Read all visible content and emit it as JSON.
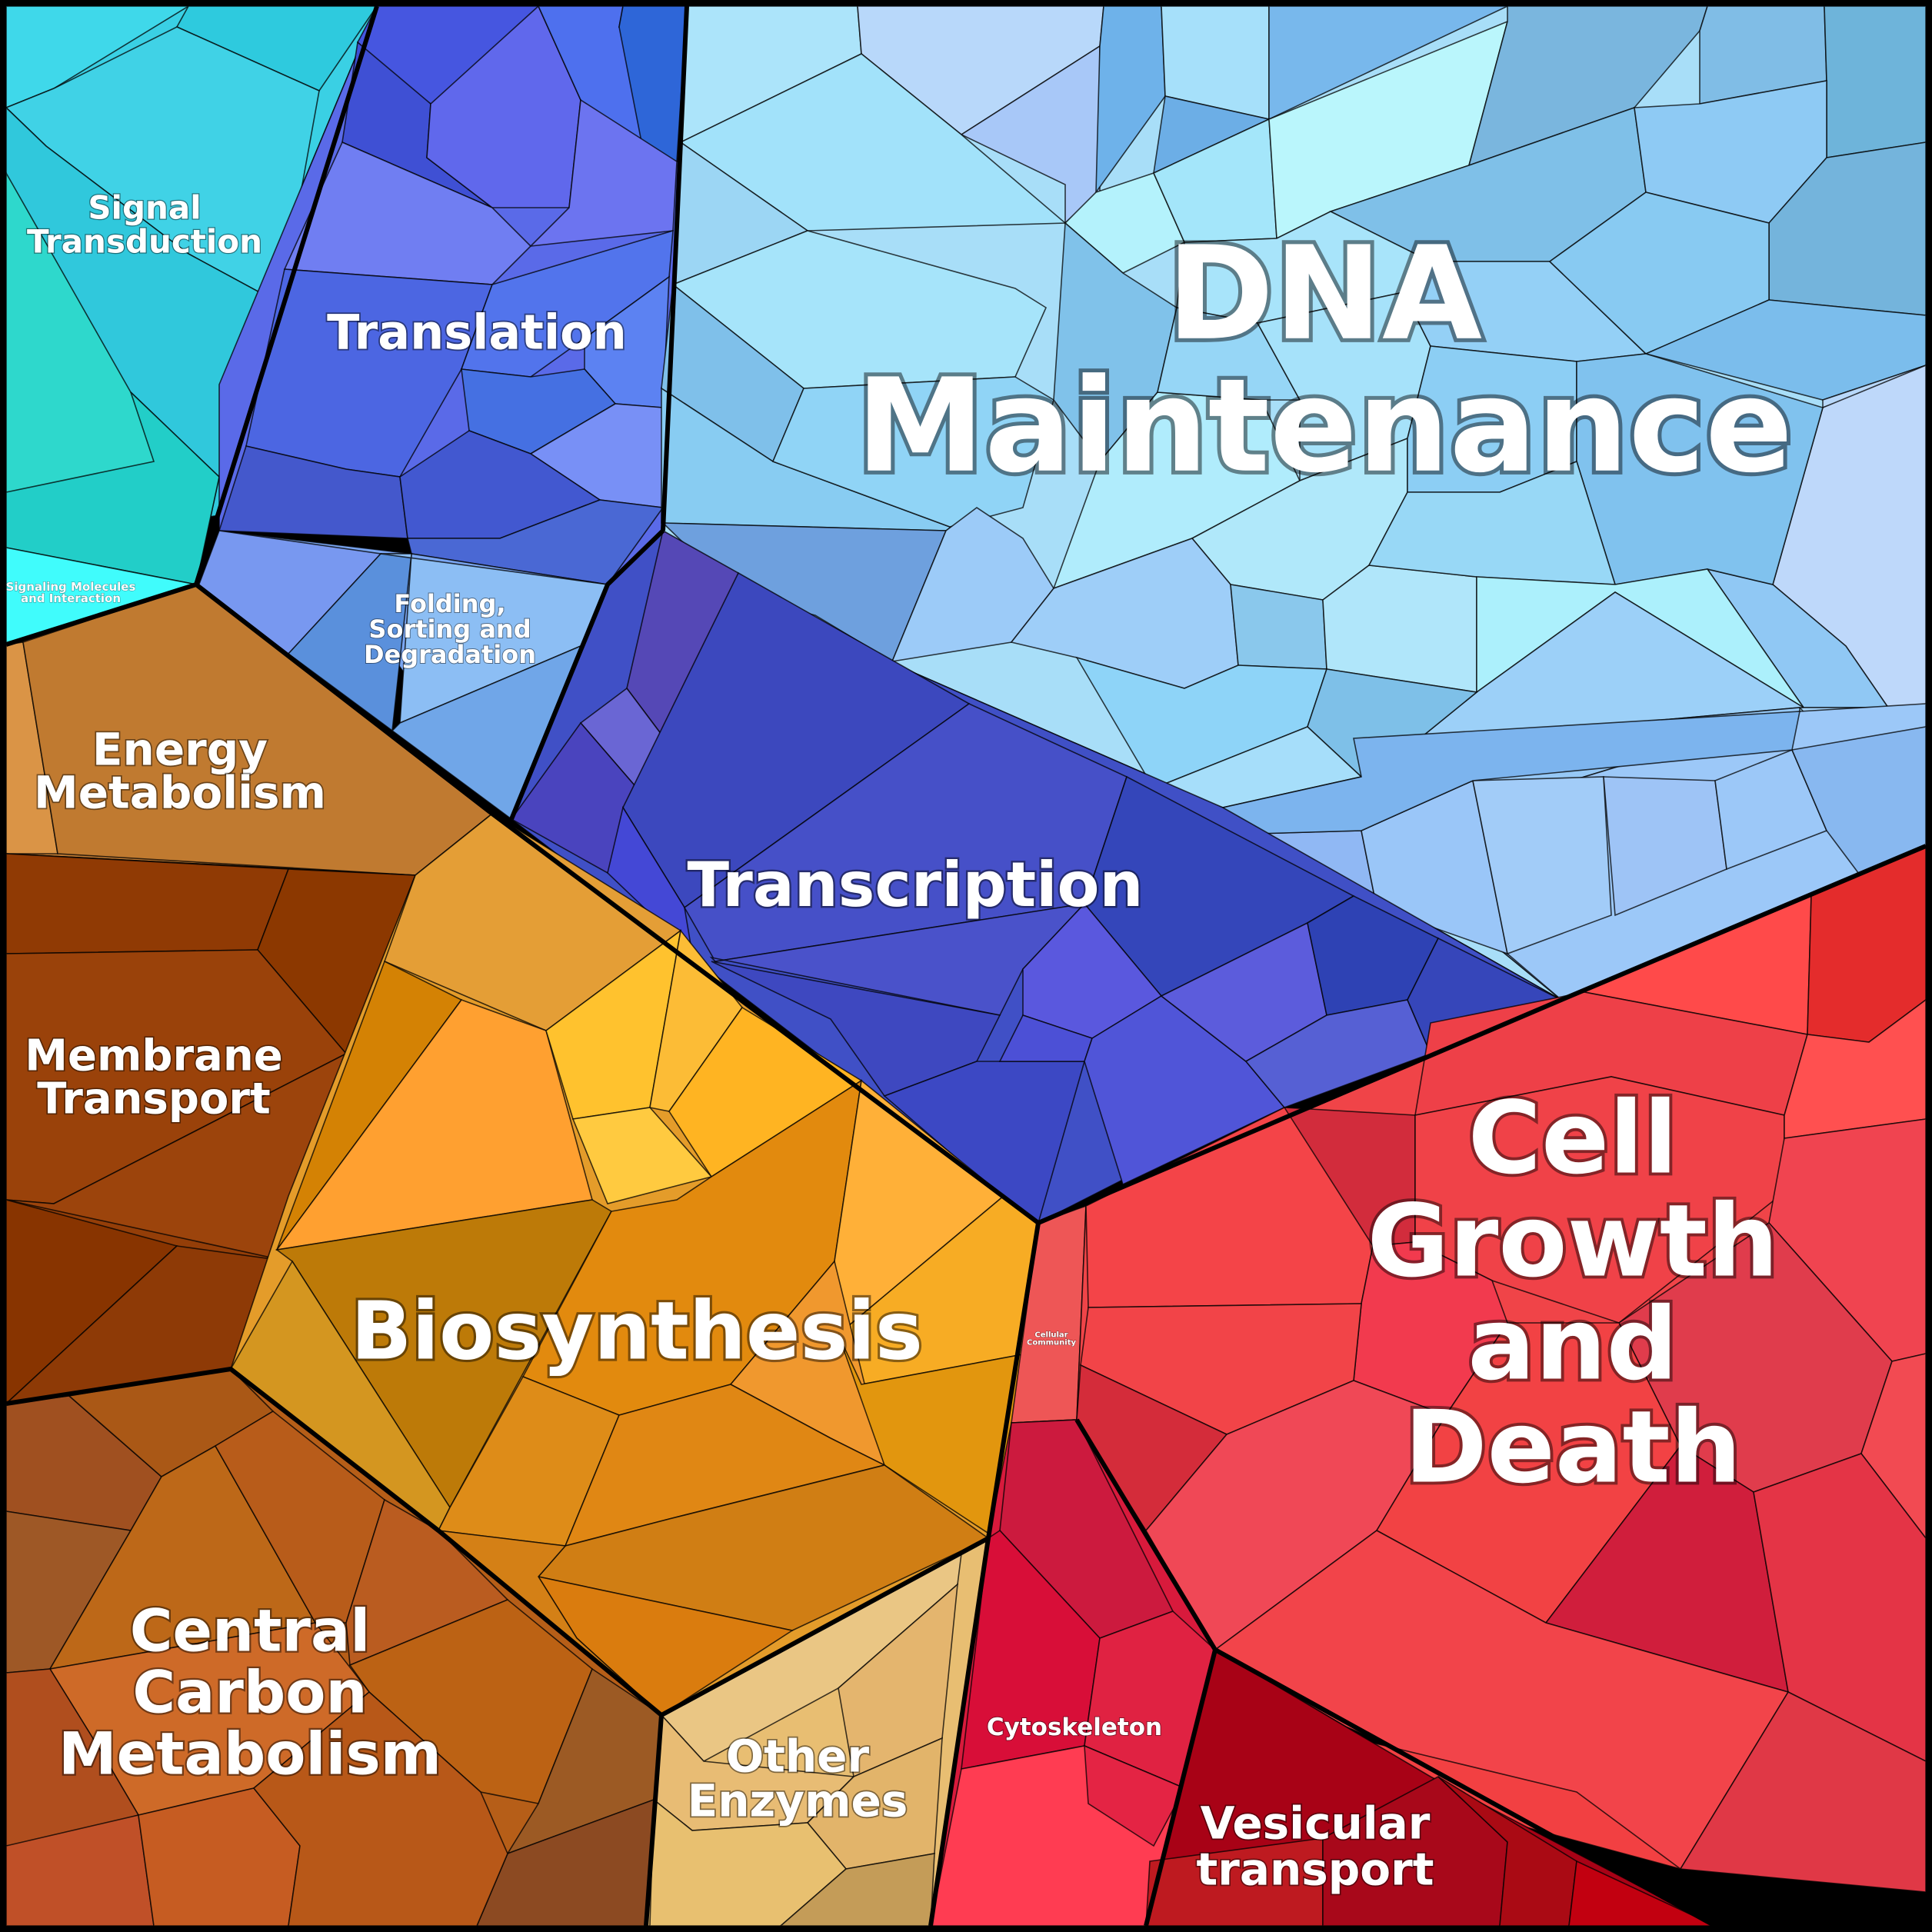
{
  "diagram": {
    "type": "voronoi-treemap",
    "regions": [
      {
        "id": "signal-transduction",
        "label_lines": [
          "Signal",
          "Transduction"
        ],
        "color": "#35D0E0"
      },
      {
        "id": "signaling-molecules",
        "label_lines": [
          "Signaling Molecules",
          "and Interaction"
        ],
        "color": "#40F6F6"
      },
      {
        "id": "translation",
        "label_lines": [
          "Translation"
        ],
        "color": "#5566E6"
      },
      {
        "id": "folding",
        "label_lines": [
          "Folding,",
          "Sorting and",
          "Degradation"
        ],
        "color": "#78A8F0"
      },
      {
        "id": "dna-maintenance",
        "label_lines": [
          "DNA",
          "Maintenance"
        ],
        "color": "#9FD8F6"
      },
      {
        "id": "transcription",
        "label_lines": [
          "Transcription"
        ],
        "color": "#3E4EC8"
      },
      {
        "id": "energy-metabolism",
        "label_lines": [
          "Energy",
          "Metabolism"
        ],
        "color": "#C07C34"
      },
      {
        "id": "membrane-transport",
        "label_lines": [
          "Membrane",
          "Transport"
        ],
        "color": "#933F08"
      },
      {
        "id": "biosynthesis",
        "label_lines": [
          "Biosynthesis"
        ],
        "color": "#E39A22"
      },
      {
        "id": "central-carbon",
        "label_lines": [
          "Central",
          "Carbon",
          "Metabolism"
        ],
        "color": "#B8601C"
      },
      {
        "id": "other-enzymes",
        "label_lines": [
          "Other",
          "Enzymes"
        ],
        "color": "#E4BA6E"
      },
      {
        "id": "cellular-community",
        "label_lines": [
          "Cellular",
          "Community"
        ],
        "color": "#EE5555"
      },
      {
        "id": "cell-growth",
        "label_lines": [
          "Cell",
          "Growth",
          "and",
          "Death"
        ],
        "color": "#EF4248"
      },
      {
        "id": "cytoskeleton",
        "label_lines": [
          "Cytoskeleton"
        ],
        "color": "#D81A3C"
      },
      {
        "id": "vesicular-transport",
        "label_lines": [
          "Vesicular",
          "transport"
        ],
        "color": "#B0101E"
      }
    ]
  }
}
